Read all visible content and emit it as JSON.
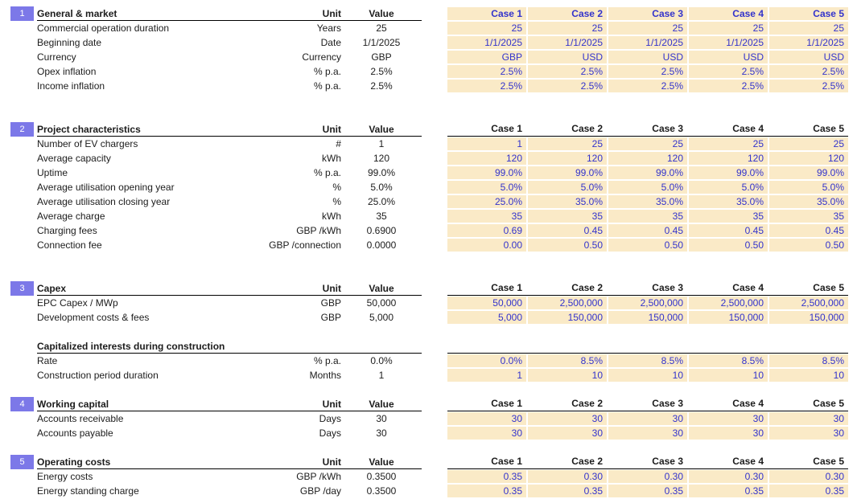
{
  "colors": {
    "section_badge": "#7c78e8",
    "input_cell_fill": "#faeac7",
    "input_text_blue": "#3333cc",
    "header_line": "#000000"
  },
  "case_headers": [
    "Case 1",
    "Case 2",
    "Case 3",
    "Case 4",
    "Case 5"
  ],
  "sections": [
    {
      "number": "1",
      "title": "General & market",
      "unit_header": "Unit",
      "value_header": "Value",
      "rows": [
        {
          "label": "Commercial operation duration",
          "unit": "Years",
          "value": "25",
          "cases": [
            "25",
            "25",
            "25",
            "25",
            "25"
          ]
        },
        {
          "label": "Beginning date",
          "unit": "Date",
          "value": "1/1/2025",
          "cases": [
            "1/1/2025",
            "1/1/2025",
            "1/1/2025",
            "1/1/2025",
            "1/1/2025"
          ]
        },
        {
          "label": "Currency",
          "unit": "Currency",
          "value": "GBP",
          "cases": [
            "GBP",
            "USD",
            "USD",
            "USD",
            "USD"
          ]
        },
        {
          "label": "Opex inflation",
          "unit": "% p.a.",
          "value": "2.5%",
          "cases": [
            "2.5%",
            "2.5%",
            "2.5%",
            "2.5%",
            "2.5%"
          ]
        },
        {
          "label": "Income inflation",
          "unit": "% p.a.",
          "value": "2.5%",
          "cases": [
            "2.5%",
            "2.5%",
            "2.5%",
            "2.5%",
            "2.5%"
          ]
        }
      ]
    },
    {
      "number": "2",
      "title": "Project characteristics",
      "unit_header": "Unit",
      "value_header": "Value",
      "rows": [
        {
          "label": "Number of EV chargers",
          "unit": "#",
          "value": "1",
          "cases": [
            "1",
            "25",
            "25",
            "25",
            "25"
          ]
        },
        {
          "label": "Average capacity",
          "unit": "kWh",
          "value": "120",
          "cases": [
            "120",
            "120",
            "120",
            "120",
            "120"
          ]
        },
        {
          "label": "Uptime",
          "unit": "% p.a.",
          "value": "99.0%",
          "cases": [
            "99.0%",
            "99.0%",
            "99.0%",
            "99.0%",
            "99.0%"
          ]
        },
        {
          "label": "Average utilisation opening year",
          "unit": "%",
          "value": "5.0%",
          "cases": [
            "5.0%",
            "5.0%",
            "5.0%",
            "5.0%",
            "5.0%"
          ]
        },
        {
          "label": "Average utilisation closing year",
          "unit": "%",
          "value": "25.0%",
          "cases": [
            "25.0%",
            "35.0%",
            "35.0%",
            "35.0%",
            "35.0%"
          ]
        },
        {
          "label": "Average charge",
          "unit": "kWh",
          "value": "35",
          "cases": [
            "35",
            "35",
            "35",
            "35",
            "35"
          ]
        },
        {
          "label": "Charging fees",
          "unit": "GBP /kWh",
          "value": "0.6900",
          "cases": [
            "0.69",
            "0.45",
            "0.45",
            "0.45",
            "0.45"
          ]
        },
        {
          "label": "Connection fee",
          "unit": "GBP /connection",
          "value": "0.0000",
          "cases": [
            "0.00",
            "0.50",
            "0.50",
            "0.50",
            "0.50"
          ]
        }
      ]
    },
    {
      "number": "3",
      "title": "Capex",
      "unit_header": "Unit",
      "value_header": "Value",
      "rows": [
        {
          "label": "EPC Capex / MWp",
          "unit": "GBP",
          "value": "50,000",
          "cases": [
            "50,000",
            "2,500,000",
            "2,500,000",
            "2,500,000",
            "2,500,000"
          ]
        },
        {
          "label": "Development costs & fees",
          "unit": "GBP",
          "value": "5,000",
          "cases": [
            "5,000",
            "150,000",
            "150,000",
            "150,000",
            "150,000"
          ]
        },
        {
          "type": "blank"
        },
        {
          "type": "sub",
          "label": "Capitalized interests during construction"
        },
        {
          "label": "Rate",
          "unit": "% p.a.",
          "value": "0.0%",
          "cases": [
            "0.0%",
            "8.5%",
            "8.5%",
            "8.5%",
            "8.5%"
          ]
        },
        {
          "label": "Construction period duration",
          "unit": "Months",
          "value": "1",
          "cases": [
            "1",
            "10",
            "10",
            "10",
            "10"
          ]
        }
      ]
    },
    {
      "number": "4",
      "title": "Working capital",
      "unit_header": "Unit",
      "value_header": "Value",
      "rows": [
        {
          "label": "Accounts receivable",
          "unit": "Days",
          "value": "30",
          "cases": [
            "30",
            "30",
            "30",
            "30",
            "30"
          ]
        },
        {
          "label": "Accounts payable",
          "unit": "Days",
          "value": "30",
          "cases": [
            "30",
            "30",
            "30",
            "30",
            "30"
          ]
        }
      ]
    },
    {
      "number": "5",
      "title": "Operating costs",
      "unit_header": "Unit",
      "value_header": "Value",
      "rows": [
        {
          "label": "Energy costs",
          "unit": "GBP /kWh",
          "value": "0.3500",
          "cases": [
            "0.35",
            "0.30",
            "0.30",
            "0.30",
            "0.30"
          ]
        },
        {
          "label": "Energy standing charge",
          "unit": "GBP /day",
          "value": "0.3500",
          "cases": [
            "0.35",
            "0.35",
            "0.35",
            "0.35",
            "0.35"
          ]
        }
      ]
    }
  ]
}
